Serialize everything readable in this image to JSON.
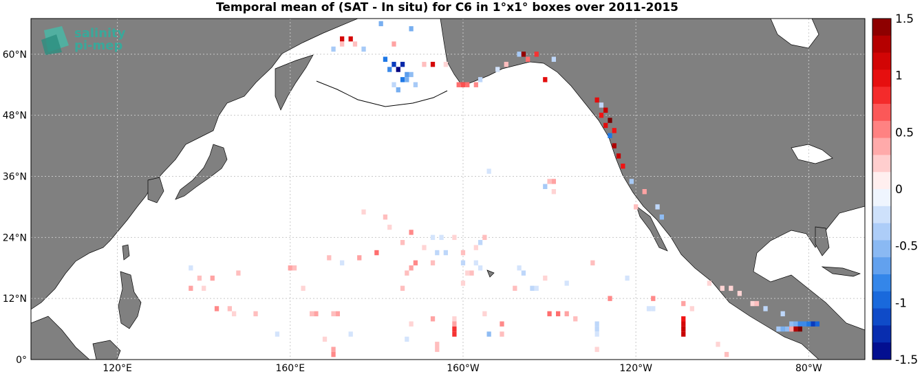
{
  "title": "Temporal mean of (SAT - In situ) for C6 in 1°x1° boxes over 2011-2015",
  "logo": {
    "line1": "salinity",
    "line2": "pi-mep"
  },
  "lat_ticks": [
    {
      "label": "60°N",
      "lat": 60
    },
    {
      "label": "48°N",
      "lat": 48
    },
    {
      "label": "36°N",
      "lat": 36
    },
    {
      "label": "24°N",
      "lat": 24
    },
    {
      "label": "12°N",
      "lat": 12
    },
    {
      "label": "0°",
      "lat": 0
    }
  ],
  "lon_ticks": [
    {
      "label": "120°E",
      "lon": 120
    },
    {
      "label": "160°E",
      "lon": 160
    },
    {
      "label": "160°W",
      "lon": 200
    },
    {
      "label": "120°W",
      "lon": 240
    },
    {
      "label": "80°W",
      "lon": 280
    }
  ],
  "colorbar": {
    "min": -1.5,
    "max": 1.5,
    "labels": [
      "1.5",
      "1",
      "0.5",
      "0",
      "-0.5",
      "-1",
      "-1.5"
    ],
    "values": [
      1.5,
      1,
      0.5,
      0,
      -0.5,
      -1,
      -1.5
    ],
    "positive_color": "#7a0000",
    "negative_color": "#000080"
  },
  "colors": {
    "land": "#808080",
    "ocean": "#ffffff",
    "grid": "#c8c8c8"
  },
  "chart_data": {
    "type": "heatmap",
    "title": "Temporal mean of (SAT - In situ) for C6 in 1°x1° boxes over 2011-2015",
    "xlim": [
      100,
      293
    ],
    "ylim": [
      0,
      67
    ],
    "cells": [
      {
        "lon": 172,
        "lat": 63,
        "v": 1.1
      },
      {
        "lon": 174,
        "lat": 63,
        "v": 1.1
      },
      {
        "lon": 170,
        "lat": 61,
        "v": -0.4
      },
      {
        "lon": 172,
        "lat": 62,
        "v": 0.3
      },
      {
        "lon": 175,
        "lat": 62,
        "v": 0.3
      },
      {
        "lon": 184,
        "lat": 62,
        "v": 0.4
      },
      {
        "lon": 177,
        "lat": 61,
        "v": -0.4
      },
      {
        "lon": 182,
        "lat": 59,
        "v": -0.9
      },
      {
        "lon": 184,
        "lat": 58,
        "v": -1.2
      },
      {
        "lon": 185,
        "lat": 57,
        "v": -1.5
      },
      {
        "lon": 186,
        "lat": 58,
        "v": -1.3
      },
      {
        "lon": 183,
        "lat": 57,
        "v": -0.8
      },
      {
        "lon": 187,
        "lat": 56,
        "v": -0.7
      },
      {
        "lon": 188,
        "lat": 56,
        "v": -0.5
      },
      {
        "lon": 186,
        "lat": 55,
        "v": -0.9
      },
      {
        "lon": 187,
        "lat": 55,
        "v": -0.6
      },
      {
        "lon": 189,
        "lat": 54,
        "v": -0.4
      },
      {
        "lon": 184,
        "lat": 54,
        "v": -0.3
      },
      {
        "lon": 185,
        "lat": 53,
        "v": -0.6
      },
      {
        "lon": 181,
        "lat": 66,
        "v": -0.6
      },
      {
        "lon": 188,
        "lat": 65,
        "v": -0.6
      },
      {
        "lon": 191,
        "lat": 58,
        "v": 0.3
      },
      {
        "lon": 193,
        "lat": 58,
        "v": 1.1
      },
      {
        "lon": 196,
        "lat": 58,
        "v": 0.2
      },
      {
        "lon": 199,
        "lat": 54,
        "v": 0.6
      },
      {
        "lon": 200,
        "lat": 54,
        "v": 0.7
      },
      {
        "lon": 201,
        "lat": 54,
        "v": 0.6
      },
      {
        "lon": 203,
        "lat": 54,
        "v": 0.5
      },
      {
        "lon": 204,
        "lat": 55,
        "v": -0.3
      },
      {
        "lon": 208,
        "lat": 57,
        "v": -0.2
      },
      {
        "lon": 210,
        "lat": 58,
        "v": 0.3
      },
      {
        "lon": 213,
        "lat": 60,
        "v": -0.4
      },
      {
        "lon": 214,
        "lat": 60,
        "v": 1.4
      },
      {
        "lon": 215,
        "lat": 59,
        "v": 0.6
      },
      {
        "lon": 217,
        "lat": 60,
        "v": 0.8
      },
      {
        "lon": 221,
        "lat": 59,
        "v": -0.3
      },
      {
        "lon": 219,
        "lat": 55,
        "v": 1.0
      },
      {
        "lon": 231,
        "lat": 51,
        "v": 1.0
      },
      {
        "lon": 232,
        "lat": 50,
        "v": 0.7
      },
      {
        "lon": 233,
        "lat": 49,
        "v": 1.2
      },
      {
        "lon": 232,
        "lat": 48,
        "v": 0.9
      },
      {
        "lon": 234,
        "lat": 47,
        "v": 1.5
      },
      {
        "lon": 233,
        "lat": 46,
        "v": 1.0
      },
      {
        "lon": 235,
        "lat": 45,
        "v": 0.9
      },
      {
        "lon": 234,
        "lat": 44,
        "v": -0.9
      },
      {
        "lon": 235,
        "lat": 42,
        "v": 1.3
      },
      {
        "lon": 236,
        "lat": 40,
        "v": 1.2
      },
      {
        "lon": 237,
        "lat": 38,
        "v": 0.9
      },
      {
        "lon": 232,
        "lat": 50,
        "v": -0.3
      },
      {
        "lon": 239,
        "lat": 35,
        "v": -0.4
      },
      {
        "lon": 242,
        "lat": 33,
        "v": 0.4
      },
      {
        "lon": 245,
        "lat": 30,
        "v": -0.3
      },
      {
        "lon": 246,
        "lat": 28,
        "v": -0.5
      },
      {
        "lon": 206,
        "lat": 37,
        "v": -0.2
      },
      {
        "lon": 220,
        "lat": 35,
        "v": 0.3
      },
      {
        "lon": 221,
        "lat": 35,
        "v": 0.4
      },
      {
        "lon": 219,
        "lat": 34,
        "v": -0.4
      },
      {
        "lon": 221,
        "lat": 33,
        "v": 0.2
      },
      {
        "lon": 240,
        "lat": 30,
        "v": 0.3
      },
      {
        "lon": 177,
        "lat": 29,
        "v": 0.2
      },
      {
        "lon": 182,
        "lat": 28,
        "v": 0.3
      },
      {
        "lon": 183,
        "lat": 26,
        "v": 0.2
      },
      {
        "lon": 188,
        "lat": 25,
        "v": 0.5
      },
      {
        "lon": 193,
        "lat": 24,
        "v": -0.2
      },
      {
        "lon": 195,
        "lat": 24,
        "v": -0.2
      },
      {
        "lon": 198,
        "lat": 24,
        "v": 0.2
      },
      {
        "lon": 205,
        "lat": 24,
        "v": 0.3
      },
      {
        "lon": 204,
        "lat": 23,
        "v": -0.3
      },
      {
        "lon": 186,
        "lat": 23,
        "v": 0.3
      },
      {
        "lon": 191,
        "lat": 22,
        "v": 0.2
      },
      {
        "lon": 194,
        "lat": 21,
        "v": -0.3
      },
      {
        "lon": 196,
        "lat": 21,
        "v": -0.3
      },
      {
        "lon": 200,
        "lat": 21,
        "v": 0.3
      },
      {
        "lon": 203,
        "lat": 22,
        "v": 0.2
      },
      {
        "lon": 180,
        "lat": 21,
        "v": 0.6
      },
      {
        "lon": 176,
        "lat": 20,
        "v": 0.4
      },
      {
        "lon": 189,
        "lat": 19,
        "v": 0.5
      },
      {
        "lon": 200,
        "lat": 19,
        "v": -0.3
      },
      {
        "lon": 203,
        "lat": 19,
        "v": -0.2
      },
      {
        "lon": 169,
        "lat": 20,
        "v": 0.3
      },
      {
        "lon": 172,
        "lat": 19,
        "v": -0.2
      },
      {
        "lon": 160,
        "lat": 18,
        "v": 0.4
      },
      {
        "lon": 161,
        "lat": 18,
        "v": 0.3
      },
      {
        "lon": 188,
        "lat": 18,
        "v": 0.4
      },
      {
        "lon": 193,
        "lat": 19,
        "v": 0.3
      },
      {
        "lon": 204,
        "lat": 18,
        "v": -0.2
      },
      {
        "lon": 213,
        "lat": 18,
        "v": -0.2
      },
      {
        "lon": 214,
        "lat": 17,
        "v": -0.3
      },
      {
        "lon": 230,
        "lat": 19,
        "v": 0.3
      },
      {
        "lon": 137,
        "lat": 18,
        "v": -0.2
      },
      {
        "lon": 142,
        "lat": 16,
        "v": 0.4
      },
      {
        "lon": 139,
        "lat": 16,
        "v": 0.3
      },
      {
        "lon": 148,
        "lat": 17,
        "v": 0.3
      },
      {
        "lon": 187,
        "lat": 17,
        "v": 0.3
      },
      {
        "lon": 201,
        "lat": 17,
        "v": 0.2
      },
      {
        "lon": 202,
        "lat": 17,
        "v": 0.3
      },
      {
        "lon": 219,
        "lat": 16,
        "v": 0.2
      },
      {
        "lon": 216,
        "lat": 14,
        "v": -0.3
      },
      {
        "lon": 224,
        "lat": 15,
        "v": -0.2
      },
      {
        "lon": 238,
        "lat": 16,
        "v": -0.2
      },
      {
        "lon": 257,
        "lat": 15,
        "v": 0.2
      },
      {
        "lon": 137,
        "lat": 14,
        "v": 0.4
      },
      {
        "lon": 140,
        "lat": 14,
        "v": 0.2
      },
      {
        "lon": 163,
        "lat": 14,
        "v": 0.2
      },
      {
        "lon": 186,
        "lat": 14,
        "v": 0.3
      },
      {
        "lon": 200,
        "lat": 15,
        "v": 0.2
      },
      {
        "lon": 212,
        "lat": 14,
        "v": 0.3
      },
      {
        "lon": 217,
        "lat": 14,
        "v": -0.2
      },
      {
        "lon": 260,
        "lat": 14,
        "v": 0.2
      },
      {
        "lon": 262,
        "lat": 14,
        "v": 0.2
      },
      {
        "lon": 264,
        "lat": 13,
        "v": 0.2
      },
      {
        "lon": 234,
        "lat": 12,
        "v": 0.5
      },
      {
        "lon": 244,
        "lat": 12,
        "v": 0.5
      },
      {
        "lon": 251,
        "lat": 11,
        "v": 0.4
      },
      {
        "lon": 267,
        "lat": 11,
        "v": 0.2
      },
      {
        "lon": 268,
        "lat": 11,
        "v": 0.3
      },
      {
        "lon": 243,
        "lat": 10,
        "v": -0.2
      },
      {
        "lon": 244,
        "lat": 10,
        "v": -0.2
      },
      {
        "lon": 253,
        "lat": 10,
        "v": 0.2
      },
      {
        "lon": 270,
        "lat": 10,
        "v": -0.3
      },
      {
        "lon": 274,
        "lat": 9,
        "v": -0.3
      },
      {
        "lon": 143,
        "lat": 10,
        "v": 0.5
      },
      {
        "lon": 146,
        "lat": 10,
        "v": 0.3
      },
      {
        "lon": 147,
        "lat": 9,
        "v": 0.2
      },
      {
        "lon": 152,
        "lat": 9,
        "v": 0.3
      },
      {
        "lon": 165,
        "lat": 9,
        "v": 0.3
      },
      {
        "lon": 166,
        "lat": 9,
        "v": 0.4
      },
      {
        "lon": 170,
        "lat": 9,
        "v": 0.3
      },
      {
        "lon": 171,
        "lat": 9,
        "v": 0.4
      },
      {
        "lon": 193,
        "lat": 8,
        "v": 0.4
      },
      {
        "lon": 198,
        "lat": 8,
        "v": 0.2
      },
      {
        "lon": 205,
        "lat": 9,
        "v": 0.2
      },
      {
        "lon": 220,
        "lat": 9,
        "v": 0.6
      },
      {
        "lon": 222,
        "lat": 9,
        "v": 0.6
      },
      {
        "lon": 224,
        "lat": 9,
        "v": 0.4
      },
      {
        "lon": 226,
        "lat": 8,
        "v": 0.3
      },
      {
        "lon": 188,
        "lat": 7,
        "v": 0.2
      },
      {
        "lon": 198,
        "lat": 7,
        "v": 0.4
      },
      {
        "lon": 209,
        "lat": 7,
        "v": 0.5
      },
      {
        "lon": 231,
        "lat": 7,
        "v": -0.3
      },
      {
        "lon": 251,
        "lat": 8,
        "v": 0.9
      },
      {
        "lon": 251,
        "lat": 7,
        "v": 1.1
      },
      {
        "lon": 251,
        "lat": 6,
        "v": 1.2
      },
      {
        "lon": 251,
        "lat": 5,
        "v": 1.2
      },
      {
        "lon": 276,
        "lat": 7,
        "v": -0.5
      },
      {
        "lon": 277,
        "lat": 7,
        "v": -0.6
      },
      {
        "lon": 278,
        "lat": 7,
        "v": -0.8
      },
      {
        "lon": 279,
        "lat": 7,
        "v": -0.8
      },
      {
        "lon": 280,
        "lat": 7,
        "v": -0.9
      },
      {
        "lon": 281,
        "lat": 7,
        "v": -1.2
      },
      {
        "lon": 282,
        "lat": 7,
        "v": -1.0
      },
      {
        "lon": 273,
        "lat": 6,
        "v": -0.4
      },
      {
        "lon": 274,
        "lat": 6,
        "v": -0.6
      },
      {
        "lon": 275,
        "lat": 6,
        "v": -0.5
      },
      {
        "lon": 276,
        "lat": 6,
        "v": 0.4
      },
      {
        "lon": 277,
        "lat": 6,
        "v": 1.3
      },
      {
        "lon": 278,
        "lat": 6,
        "v": 1.5
      },
      {
        "lon": 198,
        "lat": 6,
        "v": 0.8
      },
      {
        "lon": 198,
        "lat": 5,
        "v": 0.8
      },
      {
        "lon": 231,
        "lat": 6,
        "v": -0.3
      },
      {
        "lon": 231,
        "lat": 5,
        "v": -0.2
      },
      {
        "lon": 206,
        "lat": 5,
        "v": -0.5
      },
      {
        "lon": 209,
        "lat": 5,
        "v": 0.3
      },
      {
        "lon": 157,
        "lat": 5,
        "v": -0.2
      },
      {
        "lon": 174,
        "lat": 5,
        "v": -0.2
      },
      {
        "lon": 168,
        "lat": 4,
        "v": 0.2
      },
      {
        "lon": 187,
        "lat": 4,
        "v": -0.2
      },
      {
        "lon": 194,
        "lat": 3,
        "v": 0.3
      },
      {
        "lon": 259,
        "lat": 3,
        "v": 0.2
      },
      {
        "lon": 170,
        "lat": 2,
        "v": 0.4
      },
      {
        "lon": 170,
        "lat": 1,
        "v": 0.5
      },
      {
        "lon": 194,
        "lat": 2,
        "v": 0.3
      },
      {
        "lon": 231,
        "lat": 2,
        "v": 0.2
      },
      {
        "lon": 261,
        "lat": 1,
        "v": 0.3
      }
    ]
  }
}
